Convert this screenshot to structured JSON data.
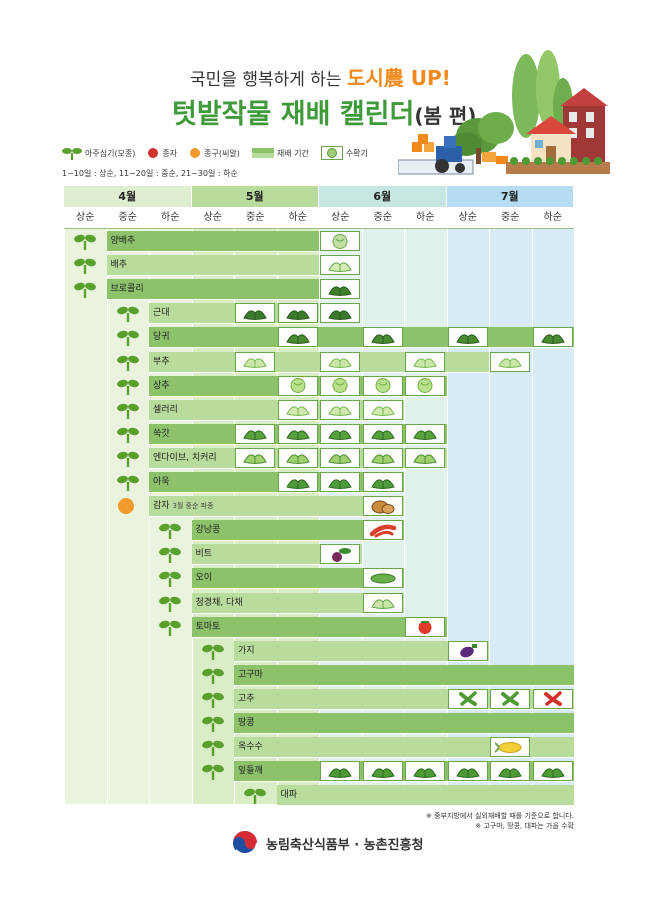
{
  "header": {
    "subtitle_pre": "국민을 행복하게 하는 ",
    "subtitle_highlight": "도시農 UP!",
    "title_main": "텃밭작물 재배 캘린더",
    "title_suffix": "(봄 편)"
  },
  "legend": {
    "seedling": "아주심기(모종)",
    "seed": "종자",
    "tuber": "종구(씨알)",
    "growing": "재배 기간",
    "harvest": "수확기",
    "period_note": "1~10일 : 상순, 11~20일 : 중순, 21~30일 : 하순"
  },
  "colors": {
    "title_green": "#3f9a3a",
    "highlight_orange": "#f08a1c",
    "bar_dark": "#8cc26a",
    "bar_light": "#b8dc9b",
    "may_bg": "#b8dc9b",
    "june_bg": "#c6e6e1",
    "july_bg": "#b6dcf3",
    "seed_red": "#d2322b",
    "tuber_orange": "#f29a2e"
  },
  "months": [
    {
      "label": "4월",
      "color": "#dfeed0"
    },
    {
      "label": "5월",
      "color": "#b8dc9b"
    },
    {
      "label": "6월",
      "color": "#c6e6e1"
    },
    {
      "label": "7월",
      "color": "#b6dcf3"
    }
  ],
  "periods": [
    "상순",
    "중순",
    "하순",
    "상순",
    "중순",
    "하순",
    "상순",
    "중순",
    "하순",
    "상순",
    "중순",
    "하순"
  ],
  "crops": [
    {
      "name": "양배추",
      "sub": "",
      "plant": "seedling",
      "start": 0,
      "end": 6,
      "harvest": [
        6
      ],
      "icon": "cabbage-icon"
    },
    {
      "name": "배추",
      "sub": "",
      "plant": "seedling",
      "start": 0,
      "end": 6,
      "harvest": [
        6
      ],
      "icon": "napa-cabbage-icon"
    },
    {
      "name": "브로콜리",
      "sub": "",
      "plant": "seedling",
      "start": 0,
      "end": 6,
      "harvest": [
        6
      ],
      "icon": "broccoli-icon"
    },
    {
      "name": "근대",
      "sub": "",
      "plant": "seedling",
      "start": 1,
      "end": 6,
      "harvest": [
        4,
        5,
        6
      ],
      "icon": "chard-icon"
    },
    {
      "name": "당귀",
      "sub": "",
      "plant": "seedling",
      "start": 1,
      "end": 12,
      "harvest": [
        5,
        7,
        9,
        11
      ],
      "icon": "angelica-icon"
    },
    {
      "name": "부추",
      "sub": "",
      "plant": "seedling",
      "start": 1,
      "end": 10,
      "harvest": [
        4,
        6,
        8,
        10
      ],
      "icon": "chive-icon"
    },
    {
      "name": "상추",
      "sub": "",
      "plant": "seedling",
      "start": 1,
      "end": 9,
      "harvest": [
        5,
        6,
        7,
        8
      ],
      "icon": "lettuce-icon"
    },
    {
      "name": "셀러리",
      "sub": "",
      "plant": "seedling",
      "start": 1,
      "end": 8,
      "harvest": [
        5,
        6,
        7
      ],
      "icon": "celery-icon"
    },
    {
      "name": "쑥갓",
      "sub": "",
      "plant": "seedling",
      "start": 1,
      "end": 9,
      "harvest": [
        4,
        5,
        6,
        7,
        8
      ],
      "icon": "crown-daisy-icon"
    },
    {
      "name": "엔다이브, 치커리",
      "sub": "",
      "plant": "seedling",
      "start": 1,
      "end": 9,
      "harvest": [
        4,
        5,
        6,
        7,
        8
      ],
      "icon": "endive-icon"
    },
    {
      "name": "아욱",
      "sub": "",
      "plant": "seedling",
      "start": 1,
      "end": 8,
      "harvest": [
        5,
        6,
        7
      ],
      "icon": "mallow-icon"
    },
    {
      "name": "감자",
      "sub": "3월 중순 파종",
      "plant": "tuber",
      "start": 1,
      "end": 8,
      "harvest": [
        7
      ],
      "icon": "potato-icon"
    },
    {
      "name": "강낭콩",
      "sub": "",
      "plant": "seedling",
      "start": 2,
      "end": 8,
      "harvest": [
        7
      ],
      "icon": "kidney-bean-icon"
    },
    {
      "name": "비트",
      "sub": "",
      "plant": "seedling",
      "start": 2,
      "end": 7,
      "harvest": [
        6
      ],
      "icon": "beet-icon"
    },
    {
      "name": "오이",
      "sub": "",
      "plant": "seedling",
      "start": 2,
      "end": 8,
      "harvest": [
        7
      ],
      "icon": "cucumber-icon"
    },
    {
      "name": "청경채, 다채",
      "sub": "",
      "plant": "seedling",
      "start": 2,
      "end": 8,
      "harvest": [
        7
      ],
      "icon": "bok-choy-icon"
    },
    {
      "name": "토마토",
      "sub": "",
      "plant": "seedling",
      "start": 2,
      "end": 9,
      "harvest": [
        8
      ],
      "icon": "tomato-icon"
    },
    {
      "name": "가지",
      "sub": "",
      "plant": "seedling",
      "start": 3,
      "end": 10,
      "harvest": [
        9
      ],
      "icon": "eggplant-icon"
    },
    {
      "name": "고구마",
      "sub": "",
      "plant": "seedling",
      "start": 3,
      "end": 12,
      "harvest": [],
      "icon": ""
    },
    {
      "name": "고추",
      "sub": "",
      "plant": "seedling",
      "start": 3,
      "end": 12,
      "harvest": [
        9,
        10,
        11
      ],
      "icon": "pepper-icon"
    },
    {
      "name": "땅콩",
      "sub": "",
      "plant": "seedling",
      "start": 3,
      "end": 12,
      "harvest": [],
      "icon": ""
    },
    {
      "name": "옥수수",
      "sub": "",
      "plant": "seedling",
      "start": 3,
      "end": 12,
      "harvest": [
        10
      ],
      "icon": "corn-icon"
    },
    {
      "name": "잎들깨",
      "sub": "",
      "plant": "seedling",
      "start": 3,
      "end": 12,
      "harvest": [
        6,
        7,
        8,
        9,
        10,
        11
      ],
      "icon": "perilla-icon"
    },
    {
      "name": "대파",
      "sub": "",
      "plant": "seedling",
      "start": 4,
      "end": 12,
      "harvest": [],
      "icon": ""
    }
  ],
  "footnotes": {
    "note1": "※ 중부지방에서 실외재배할 때를 기준으로 합니다.",
    "note2": "※ 고구마, 땅콩, 대파는 가을 수확"
  },
  "ministry": "농림축산식품부 · 농촌진흥청"
}
